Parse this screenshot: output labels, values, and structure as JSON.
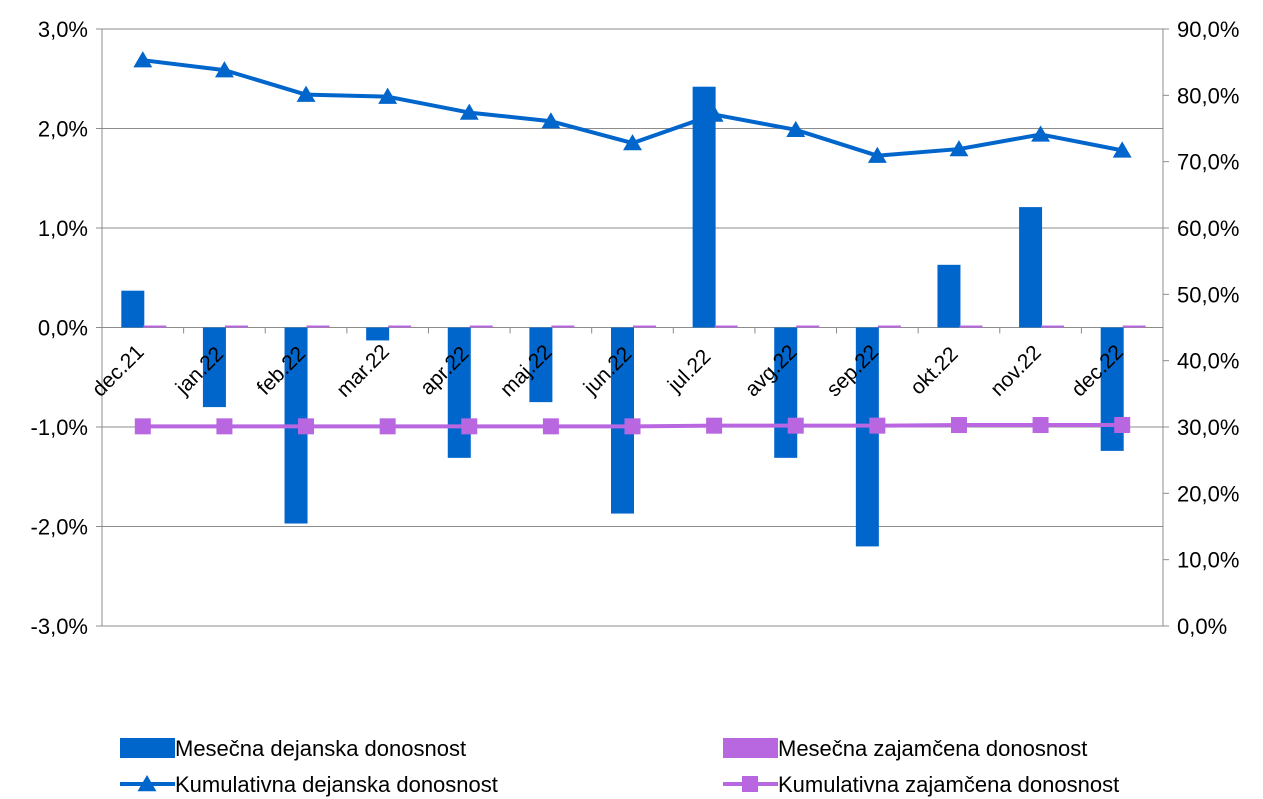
{
  "chart_data": {
    "type": "bar",
    "categories": [
      "dec.21",
      "jan.22",
      "feb.22",
      "mar.22",
      "apr.22",
      "maj.22",
      "jun.22",
      "jul.22",
      "avg.22",
      "sep.22",
      "okt.22",
      "nov.22",
      "dec.22"
    ],
    "series": [
      {
        "name": "Mesečna dejanska donosnost",
        "type": "bar",
        "axis": "left",
        "color": "#0066cc",
        "values": [
          0.37,
          -0.8,
          -1.97,
          -0.13,
          -1.31,
          -0.75,
          -1.87,
          2.42,
          -1.31,
          -2.2,
          0.63,
          1.21,
          -1.24
        ]
      },
      {
        "name": "Mesečna zajamčena donosnost",
        "type": "bar",
        "axis": "left",
        "color": "#b967e0",
        "values": [
          0.02,
          0.02,
          0.02,
          0.02,
          0.02,
          0.02,
          0.02,
          0.02,
          0.02,
          0.02,
          0.02,
          0.02,
          0.02
        ]
      },
      {
        "name": "Kumulativna dejanska donosnost",
        "type": "line",
        "axis": "right",
        "marker": "triangle",
        "color": "#0066cc",
        "values": [
          85.3,
          83.8,
          80.1,
          79.8,
          77.4,
          76.1,
          72.8,
          77.1,
          74.8,
          70.9,
          71.9,
          74.1,
          71.7
        ]
      },
      {
        "name": "Kumulativna zajamčena donosnost",
        "type": "line",
        "axis": "right",
        "marker": "square",
        "color": "#b967e0",
        "values": [
          30.1,
          30.1,
          30.1,
          30.1,
          30.1,
          30.1,
          30.1,
          30.2,
          30.2,
          30.2,
          30.3,
          30.3,
          30.3
        ]
      }
    ],
    "left_axis": {
      "ylim": [
        -3,
        3
      ],
      "ticks": [
        3,
        2,
        1,
        0,
        -1,
        -2,
        -3
      ],
      "tick_labels": [
        "3,0%",
        "2,0%",
        "1,0%",
        "0,0%",
        "-1,0%",
        "-2,0%",
        "-3,0%"
      ]
    },
    "right_axis": {
      "ylim": [
        0,
        90
      ],
      "ticks": [
        90,
        80,
        70,
        60,
        50,
        40,
        30,
        20,
        10,
        0
      ],
      "tick_labels": [
        "90,0%",
        "80,0%",
        "70,0%",
        "60,0%",
        "50,0%",
        "40,0%",
        "30,0%",
        "20,0%",
        "10,0%",
        "0,0%"
      ]
    },
    "grid": true,
    "legend_position": "bottom"
  }
}
